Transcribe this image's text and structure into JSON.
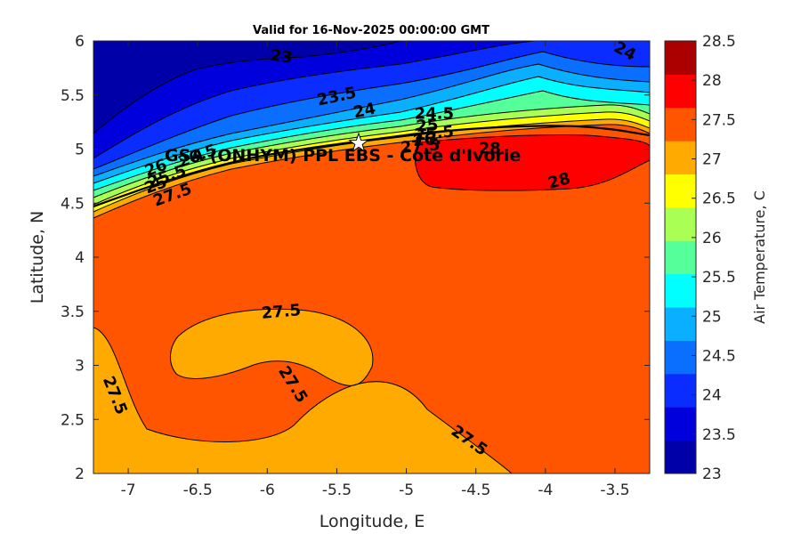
{
  "chart_data": {
    "type": "heatmap",
    "title": "Valid for 16-Nov-2025 00:00:00 GMT",
    "xlabel": "Longitude, E",
    "ylabel": "Latitude, N",
    "xlim": [
      -7.25,
      -3.25
    ],
    "ylim": [
      2,
      6
    ],
    "x_ticks": [
      "-7",
      "-6.5",
      "-6",
      "-5.5",
      "-5",
      "-4.5",
      "-4",
      "-3.5"
    ],
    "x_tick_values": [
      -7,
      -6.5,
      -6,
      -5.5,
      -5,
      -4.5,
      -4,
      -3.5
    ],
    "y_ticks": [
      "2",
      "2.5",
      "3",
      "3.5",
      "4",
      "4.5",
      "5",
      "5.5",
      "6"
    ],
    "y_tick_values": [
      2,
      2.5,
      3,
      3.5,
      4,
      4.5,
      5,
      5.5,
      6
    ],
    "colorbar": {
      "label": "Air Temperature, C",
      "levels": [
        23,
        23.5,
        24,
        24.5,
        25,
        25.5,
        26,
        26.5,
        27,
        27.5,
        28,
        28.5
      ],
      "tick_labels": [
        "23",
        "23.5",
        "24",
        "24.5",
        "25",
        "25.5",
        "26",
        "26.5",
        "27",
        "27.5",
        "28",
        "28.5"
      ],
      "colors": [
        "#0000a8",
        "#0000dd",
        "#0a2cff",
        "#0a6eff",
        "#0ab0ff",
        "#00ffff",
        "#55ff99",
        "#aaff55",
        "#ffff00",
        "#ffaa00",
        "#ff5500",
        "#ff0000",
        "#aa0000"
      ]
    },
    "site": {
      "label": "GSA (ONHYM) PPL EBS - Cote d'Ivorie",
      "lon": -5.35,
      "lat": 5.05
    },
    "contour_labels": [
      {
        "text": "23",
        "lon": -5.9,
        "lat": 5.85,
        "angle": 8
      },
      {
        "text": "23.5",
        "lon": -5.5,
        "lat": 5.48,
        "angle": -12
      },
      {
        "text": "24",
        "lon": -5.3,
        "lat": 5.35,
        "angle": -12
      },
      {
        "text": "24",
        "lon": -3.43,
        "lat": 5.9,
        "angle": 28
      },
      {
        "text": "24.5",
        "lon": -4.8,
        "lat": 5.32,
        "angle": 0
      },
      {
        "text": "25",
        "lon": -4.85,
        "lat": 5.21,
        "angle": -5
      },
      {
        "text": "25.5",
        "lon": -4.8,
        "lat": 5.14,
        "angle": -5
      },
      {
        "text": "26.",
        "lon": -4.85,
        "lat": 5.08,
        "angle": -5
      },
      {
        "text": "27.5",
        "lon": -4.9,
        "lat": 5.02,
        "angle": -5
      },
      {
        "text": "28",
        "lon": -4.4,
        "lat": 5.0,
        "angle": 0
      },
      {
        "text": "28",
        "lon": -3.9,
        "lat": 4.7,
        "angle": -15
      },
      {
        "text": "26.5",
        "lon": -6.5,
        "lat": 4.93,
        "angle": -20
      },
      {
        "text": "26",
        "lon": -6.8,
        "lat": 4.82,
        "angle": -20
      },
      {
        "text": "25.5",
        "lon": -6.72,
        "lat": 4.74,
        "angle": -20
      },
      {
        "text": "25",
        "lon": -6.8,
        "lat": 4.66,
        "angle": -20
      },
      {
        "text": "27.5",
        "lon": -6.68,
        "lat": 4.57,
        "angle": -20
      },
      {
        "text": "27.5",
        "lon": -5.9,
        "lat": 3.49,
        "angle": -5
      },
      {
        "text": "27.5",
        "lon": -5.82,
        "lat": 2.82,
        "angle": 58
      },
      {
        "text": "27.5",
        "lon": -7.1,
        "lat": 2.72,
        "angle": 68
      },
      {
        "text": "27.5",
        "lon": -4.55,
        "lat": 2.3,
        "angle": 35
      }
    ]
  }
}
